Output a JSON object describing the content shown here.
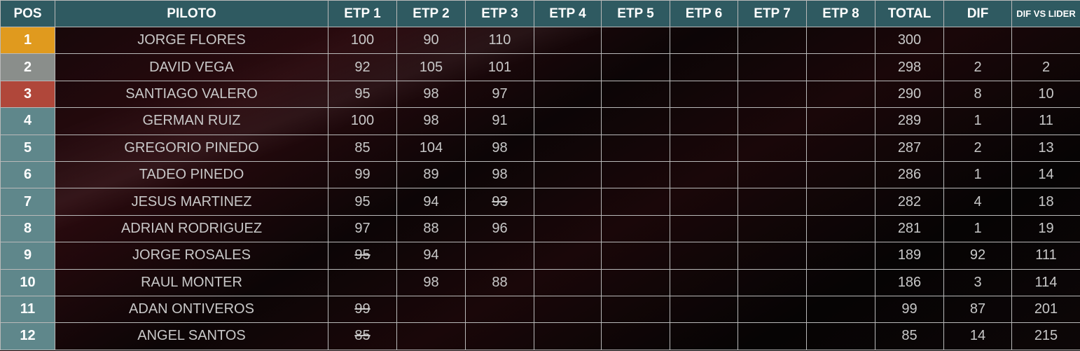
{
  "headers": {
    "pos": "POS",
    "piloto": "PILOTO",
    "stages": [
      "ETP 1",
      "ETP 2",
      "ETP 3",
      "ETP 4",
      "ETP 5",
      "ETP 6",
      "ETP 7",
      "ETP 8"
    ],
    "total": "TOTAL",
    "dif": "DIF",
    "dif_vs_lider": "DIF VS LIDER"
  },
  "colors": {
    "header": "#2f5a61",
    "pos_default": "#5f878b",
    "pos_1": "#e09a1e",
    "pos_2": "#8a8e8b",
    "pos_3": "#b0473a"
  },
  "rows": [
    {
      "pos": "1",
      "piloto": "JORGE FLORES",
      "stages": [
        {
          "v": "100"
        },
        {
          "v": "90"
        },
        {
          "v": "110"
        },
        {},
        {},
        {},
        {},
        {}
      ],
      "total": "300",
      "dif": "",
      "dif_lider": ""
    },
    {
      "pos": "2",
      "piloto": "DAVID VEGA",
      "stages": [
        {
          "v": "92"
        },
        {
          "v": "105"
        },
        {
          "v": "101"
        },
        {},
        {},
        {},
        {},
        {}
      ],
      "total": "298",
      "dif": "2",
      "dif_lider": "2"
    },
    {
      "pos": "3",
      "piloto": "SANTIAGO VALERO",
      "stages": [
        {
          "v": "95"
        },
        {
          "v": "98"
        },
        {
          "v": "97"
        },
        {},
        {},
        {},
        {},
        {}
      ],
      "total": "290",
      "dif": "8",
      "dif_lider": "10"
    },
    {
      "pos": "4",
      "piloto": "GERMAN RUIZ",
      "stages": [
        {
          "v": "100"
        },
        {
          "v": "98"
        },
        {
          "v": "91"
        },
        {},
        {},
        {},
        {},
        {}
      ],
      "total": "289",
      "dif": "1",
      "dif_lider": "11"
    },
    {
      "pos": "5",
      "piloto": "GREGORIO PINEDO",
      "stages": [
        {
          "v": "85"
        },
        {
          "v": "104"
        },
        {
          "v": "98"
        },
        {},
        {},
        {},
        {},
        {}
      ],
      "total": "287",
      "dif": "2",
      "dif_lider": "13"
    },
    {
      "pos": "6",
      "piloto": "TADEO PINEDO",
      "stages": [
        {
          "v": "99"
        },
        {
          "v": "89"
        },
        {
          "v": "98"
        },
        {},
        {},
        {},
        {},
        {}
      ],
      "total": "286",
      "dif": "1",
      "dif_lider": "14"
    },
    {
      "pos": "7",
      "piloto": "JESUS MARTINEZ",
      "stages": [
        {
          "v": "95"
        },
        {
          "v": "94"
        },
        {
          "v": "93",
          "discarded": true
        },
        {},
        {},
        {},
        {},
        {}
      ],
      "total": "282",
      "dif": "4",
      "dif_lider": "18"
    },
    {
      "pos": "8",
      "piloto": "ADRIAN RODRIGUEZ",
      "stages": [
        {
          "v": "97"
        },
        {
          "v": "88"
        },
        {
          "v": "96"
        },
        {},
        {},
        {},
        {},
        {}
      ],
      "total": "281",
      "dif": "1",
      "dif_lider": "19"
    },
    {
      "pos": "9",
      "piloto": "JORGE ROSALES",
      "stages": [
        {
          "v": "95",
          "discarded": true
        },
        {
          "v": "94"
        },
        {},
        {},
        {},
        {},
        {},
        {}
      ],
      "total": "189",
      "dif": "92",
      "dif_lider": "111"
    },
    {
      "pos": "10",
      "piloto": "RAUL MONTER",
      "stages": [
        {},
        {
          "v": "98"
        },
        {
          "v": "88"
        },
        {},
        {},
        {},
        {},
        {}
      ],
      "total": "186",
      "dif": "3",
      "dif_lider": "114"
    },
    {
      "pos": "11",
      "piloto": "ADAN ONTIVEROS",
      "stages": [
        {
          "v": "99",
          "discarded": true
        },
        {},
        {},
        {},
        {},
        {},
        {},
        {}
      ],
      "total": "99",
      "dif": "87",
      "dif_lider": "201"
    },
    {
      "pos": "12",
      "piloto": "ANGEL SANTOS",
      "stages": [
        {
          "v": "85",
          "discarded": true
        },
        {},
        {},
        {},
        {},
        {},
        {},
        {}
      ],
      "total": "85",
      "dif": "14",
      "dif_lider": "215"
    }
  ]
}
